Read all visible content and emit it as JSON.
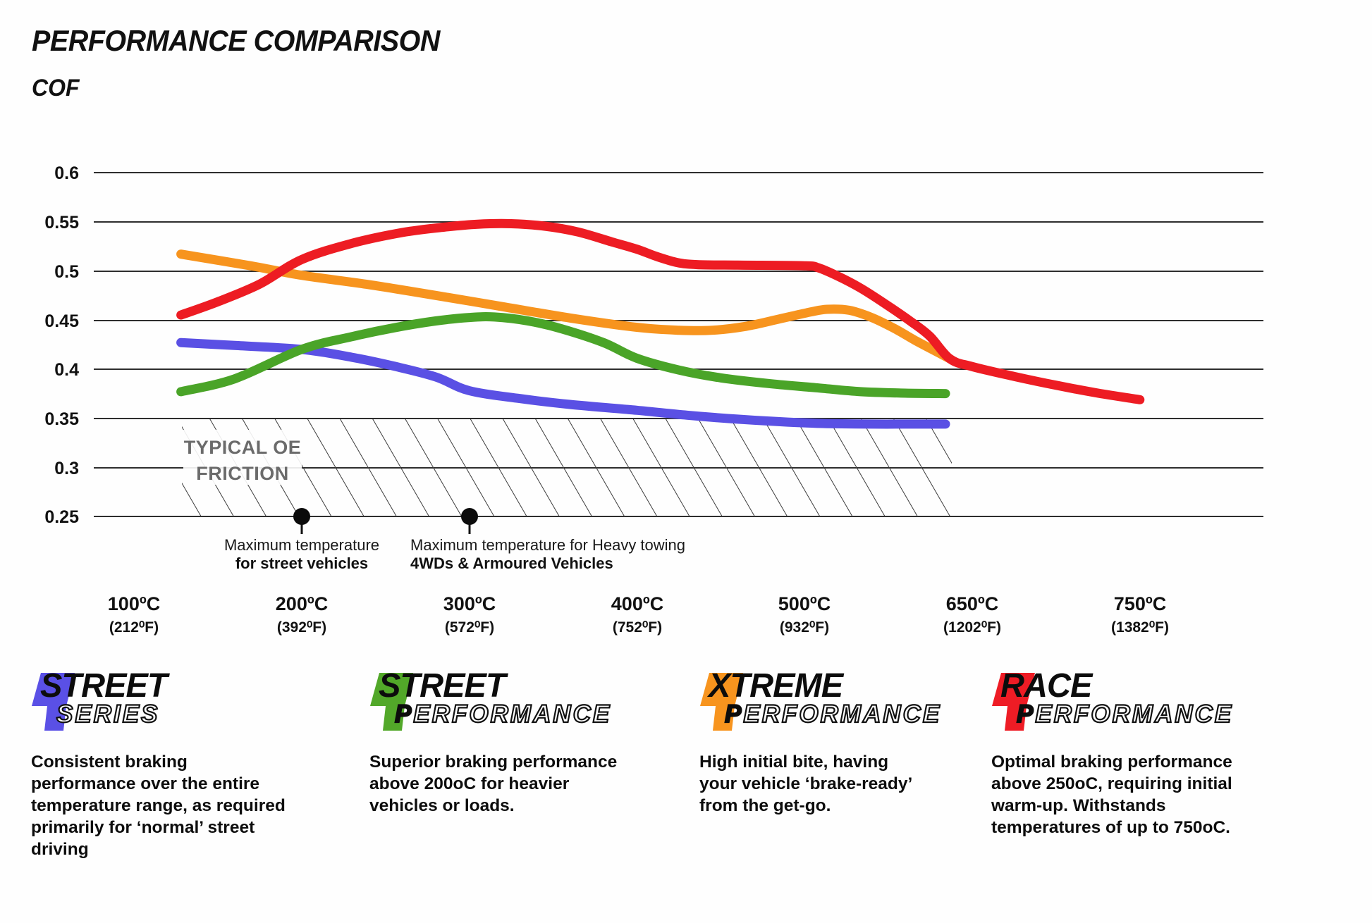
{
  "page": {
    "title": "PERFORMANCE COMPARISON",
    "y_axis_title": "COF"
  },
  "chart_data": {
    "type": "line",
    "title": "PERFORMANCE COMPARISON",
    "ylabel": "COF",
    "grid": "horizontal",
    "y_axis": {
      "min": 0.25,
      "max": 0.6,
      "ticks": [
        "0.6",
        "0.55",
        "0.5",
        "0.45",
        "0.4",
        "0.35",
        "0.3",
        "0.25"
      ]
    },
    "x_axis": {
      "unit": "degrees C",
      "values": [
        100,
        200,
        300,
        400,
        500,
        650,
        750
      ],
      "labels": [
        {
          "c": "100ºC",
          "f": "(212⁰F)"
        },
        {
          "c": "200ºC",
          "f": "(392⁰F)"
        },
        {
          "c": "300ºC",
          "f": "(572⁰F)"
        },
        {
          "c": "400ºC",
          "f": "(752⁰F)"
        },
        {
          "c": "500ºC",
          "f": "(932⁰F)"
        },
        {
          "c": "650ºC",
          "f": "(1202⁰F)"
        },
        {
          "c": "750ºC",
          "f": "(1382⁰F)"
        }
      ]
    },
    "series": [
      {
        "id": "street-series",
        "name": "Street Series",
        "color": "#5a50e4",
        "points": [
          [
            128,
            0.427
          ],
          [
            160,
            0.424
          ],
          [
            200,
            0.42
          ],
          [
            230,
            0.412
          ],
          [
            255,
            0.403
          ],
          [
            280,
            0.392
          ],
          [
            300,
            0.378
          ],
          [
            330,
            0.37
          ],
          [
            360,
            0.364
          ],
          [
            400,
            0.358
          ],
          [
            430,
            0.353
          ],
          [
            460,
            0.349
          ],
          [
            490,
            0.346
          ],
          [
            520,
            0.3445
          ],
          [
            560,
            0.344
          ],
          [
            600,
            0.344
          ],
          [
            626,
            0.344
          ]
        ]
      },
      {
        "id": "street-performance",
        "name": "Street Performance",
        "color": "#4aa428",
        "points": [
          [
            128,
            0.377
          ],
          [
            160,
            0.39
          ],
          [
            200,
            0.42
          ],
          [
            230,
            0.433
          ],
          [
            255,
            0.442
          ],
          [
            280,
            0.449
          ],
          [
            300,
            0.4525
          ],
          [
            315,
            0.453
          ],
          [
            335,
            0.449
          ],
          [
            355,
            0.441
          ],
          [
            380,
            0.427
          ],
          [
            400,
            0.411
          ],
          [
            425,
            0.399
          ],
          [
            450,
            0.391
          ],
          [
            480,
            0.385
          ],
          [
            510,
            0.381
          ],
          [
            550,
            0.377
          ],
          [
            590,
            0.3755
          ],
          [
            626,
            0.375
          ]
        ]
      },
      {
        "id": "xtreme-performance",
        "name": "Xtreme Performance",
        "color": "#f7941e",
        "points": [
          [
            128,
            0.517
          ],
          [
            170,
            0.505
          ],
          [
            200,
            0.4955
          ],
          [
            240,
            0.486
          ],
          [
            280,
            0.475
          ],
          [
            320,
            0.4635
          ],
          [
            360,
            0.452
          ],
          [
            400,
            0.4425
          ],
          [
            425,
            0.4395
          ],
          [
            445,
            0.4395
          ],
          [
            465,
            0.4435
          ],
          [
            485,
            0.451
          ],
          [
            505,
            0.458
          ],
          [
            520,
            0.4608
          ],
          [
            540,
            0.4598
          ],
          [
            560,
            0.4525
          ],
          [
            580,
            0.4415
          ],
          [
            600,
            0.4285
          ],
          [
            615,
            0.4195
          ],
          [
            630,
            0.4105
          ]
        ]
      },
      {
        "id": "race-performance",
        "name": "Race Performance",
        "color": "#ed1c23",
        "points": [
          [
            128,
            0.455
          ],
          [
            150,
            0.4685
          ],
          [
            175,
            0.4865
          ],
          [
            200,
            0.5115
          ],
          [
            230,
            0.528
          ],
          [
            260,
            0.539
          ],
          [
            285,
            0.5445
          ],
          [
            305,
            0.5475
          ],
          [
            325,
            0.548
          ],
          [
            345,
            0.5455
          ],
          [
            365,
            0.5395
          ],
          [
            385,
            0.5295
          ],
          [
            400,
            0.522
          ],
          [
            412,
            0.5145
          ],
          [
            424,
            0.5085
          ],
          [
            436,
            0.5063
          ],
          [
            460,
            0.5058
          ],
          [
            500,
            0.5052
          ],
          [
            512,
            0.5032
          ],
          [
            530,
            0.4945
          ],
          [
            550,
            0.4825
          ],
          [
            572,
            0.4665
          ],
          [
            595,
            0.4485
          ],
          [
            612,
            0.4335
          ],
          [
            630,
            0.4105
          ],
          [
            650,
            0.4025
          ],
          [
            675,
            0.3925
          ],
          [
            700,
            0.3835
          ],
          [
            725,
            0.3755
          ],
          [
            750,
            0.3688
          ]
        ]
      }
    ],
    "oe_band": {
      "label_line1": "TYPICAL OE",
      "label_line2": "FRICTION",
      "y_from": 0.25,
      "y_to": 0.35,
      "x_from_temp": 130,
      "x_to_temp": 630
    },
    "annotations": [
      {
        "temp": 200,
        "cof": 0.25,
        "line1": "Maximum temperature",
        "line2": "for street vehicles"
      },
      {
        "temp": 300,
        "cof": 0.25,
        "line1": "Maximum temperature for Heavy towing",
        "line2": "4WDs & Armoured Vehicles"
      }
    ]
  },
  "legend": {
    "items": [
      {
        "word1": "STREET",
        "word2_first": "S",
        "word2_rest": "ERIES",
        "color": "#5a50e6",
        "solid_first": false,
        "desc": "Consistent braking performance over the entire temperature range, as required primarily for ‘normal’ street driving"
      },
      {
        "word1": "STREET",
        "word2_first": "P",
        "word2_rest": "ERFORMANCE",
        "color": "#52a829",
        "solid_first": true,
        "desc": "Superior braking performance above 200oC for heavier vehicles or loads."
      },
      {
        "word1": "XTREME",
        "word2_first": "P",
        "word2_rest": "ERFORMANCE",
        "color": "#f7941e",
        "solid_first": true,
        "desc": "High initial bite, having your vehicle ‘brake-ready’ from the get-go."
      },
      {
        "word1": "RACE",
        "word2_first": "P",
        "word2_rest": "ERFORMANCE",
        "color": "#ee1c25",
        "solid_first": true,
        "desc": "Optimal braking performance above 250oC, requiring initial warm-up. Withstands temperatures of up to 750oC."
      }
    ]
  }
}
